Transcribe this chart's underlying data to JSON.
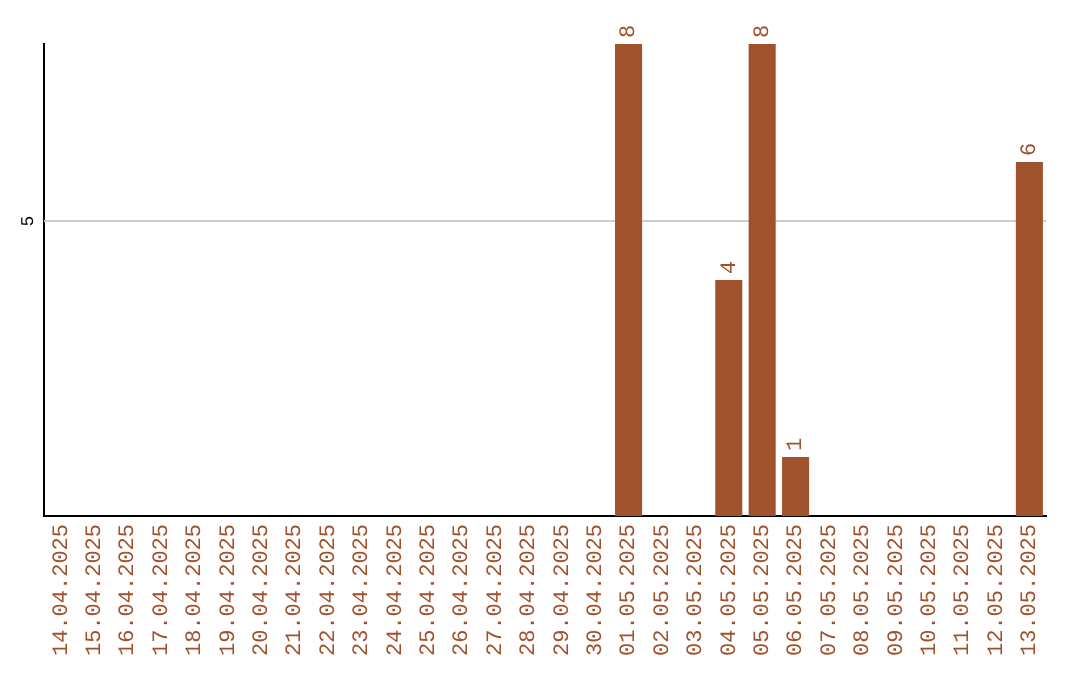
{
  "chart_data": {
    "type": "bar",
    "categories": [
      "14.04.2025",
      "15.04.2025",
      "16.04.2025",
      "17.04.2025",
      "18.04.2025",
      "19.04.2025",
      "20.04.2025",
      "21.04.2025",
      "22.04.2025",
      "23.04.2025",
      "24.04.2025",
      "25.04.2025",
      "26.04.2025",
      "27.04.2025",
      "28.04.2025",
      "29.04.2025",
      "30.04.2025",
      "01.05.2025",
      "02.05.2025",
      "03.05.2025",
      "04.05.2025",
      "05.05.2025",
      "06.05.2025",
      "07.05.2025",
      "08.05.2025",
      "09.05.2025",
      "10.05.2025",
      "11.05.2025",
      "12.05.2025",
      "13.05.2025"
    ],
    "values": [
      null,
      null,
      null,
      null,
      null,
      null,
      null,
      null,
      null,
      null,
      null,
      null,
      null,
      null,
      null,
      null,
      null,
      8,
      null,
      null,
      4,
      8,
      1,
      null,
      null,
      null,
      null,
      null,
      null,
      6
    ],
    "data_labels": true,
    "ylim": [
      0,
      8
    ],
    "ref_lines": [
      {
        "axis": "y",
        "value": 5,
        "label": "5",
        "color": "#cccccc"
      }
    ],
    "color": "#a0522d",
    "legend": false
  }
}
